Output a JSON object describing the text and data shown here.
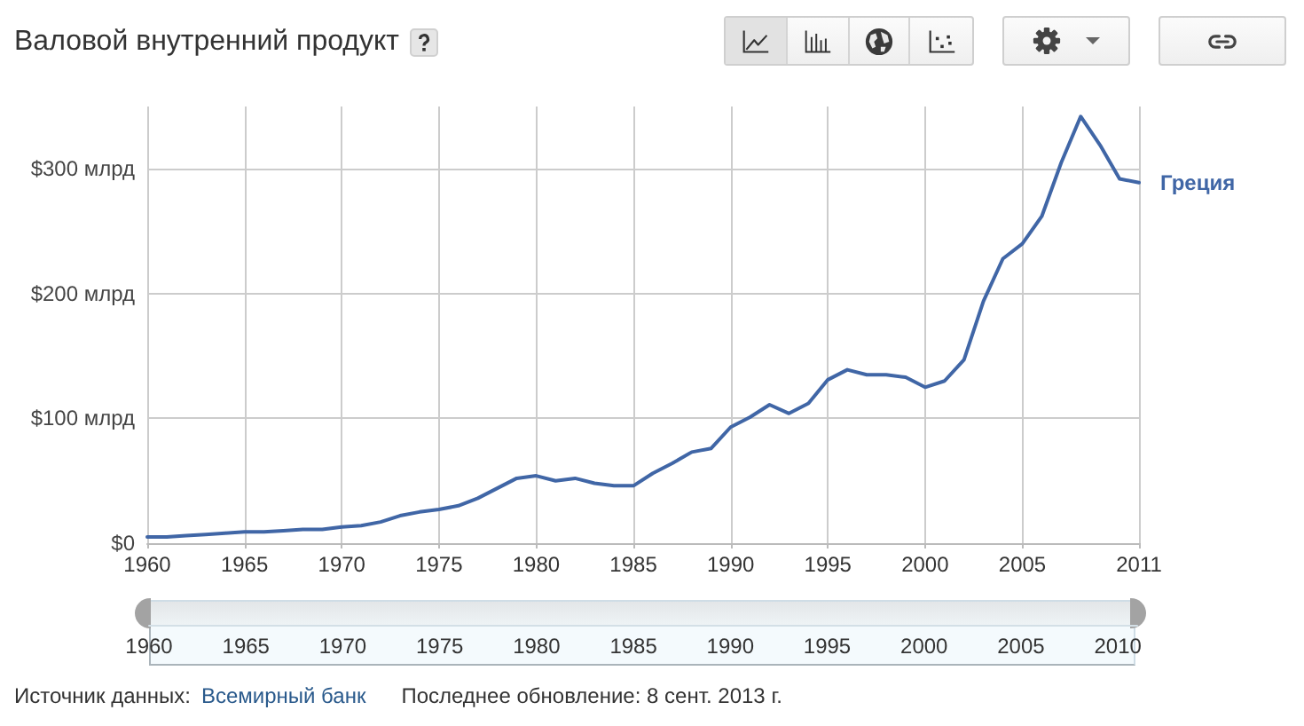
{
  "chart_data": {
    "type": "line",
    "title": "Валовой внутренний продукт",
    "x": [
      1960,
      1961,
      1962,
      1963,
      1964,
      1965,
      1966,
      1967,
      1968,
      1969,
      1970,
      1971,
      1972,
      1973,
      1974,
      1975,
      1976,
      1977,
      1978,
      1979,
      1980,
      1981,
      1982,
      1983,
      1984,
      1985,
      1986,
      1987,
      1988,
      1989,
      1990,
      1991,
      1992,
      1993,
      1994,
      1995,
      1996,
      1997,
      1998,
      1999,
      2000,
      2001,
      2002,
      2003,
      2004,
      2005,
      2006,
      2007,
      2008,
      2009,
      2010,
      2011
    ],
    "series": [
      {
        "name": "Греция",
        "color": "#4066a6",
        "values": [
          5,
          5,
          6,
          7,
          8,
          9,
          9,
          10,
          11,
          11,
          13,
          14,
          17,
          22,
          25,
          27,
          30,
          36,
          44,
          52,
          54,
          50,
          52,
          48,
          46,
          46,
          56,
          64,
          73,
          76,
          93,
          101,
          111,
          104,
          112,
          131,
          139,
          135,
          135,
          133,
          125,
          130,
          147,
          194,
          228,
          240,
          262,
          305,
          342,
          319,
          292,
          289
        ]
      }
    ],
    "xlim": [
      1960,
      2011
    ],
    "xticks": [
      1960,
      1965,
      1970,
      1975,
      1980,
      1985,
      1990,
      1995,
      2000,
      2005,
      2011
    ],
    "ylim": [
      0,
      350
    ],
    "yticks": [
      {
        "value": 0,
        "label": "$0"
      },
      {
        "value": 100,
        "label": "$100 млрд"
      },
      {
        "value": 200,
        "label": "$200 млрд"
      },
      {
        "value": 300,
        "label": "$300 млрд"
      }
    ],
    "x2lim": [
      1960,
      2011
    ],
    "x2ticks": [
      1960,
      1965,
      1970,
      1975,
      1980,
      1985,
      1990,
      1995,
      2000,
      2005,
      2010
    ],
    "grid": true,
    "marker": "none",
    "line_style": "solid",
    "annotations": [
      "Источник данных:",
      "Всемирный банк",
      "Последнее обновление: 8 сент. 2013 г."
    ]
  }
}
